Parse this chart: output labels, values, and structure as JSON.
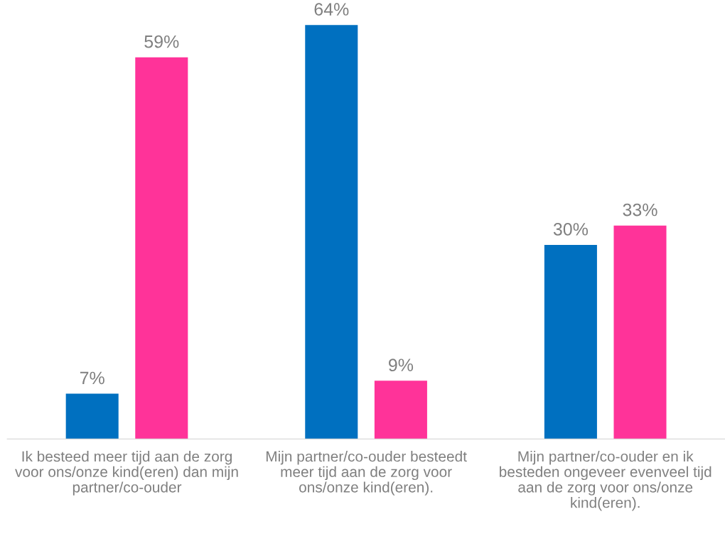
{
  "chart_data": {
    "type": "bar",
    "categories": [
      "Ik besteed meer tijd aan de zorg voor ons/onze kind(eren) dan mijn partner/co-ouder",
      "Mijn partner/co-ouder besteedt meer tijd aan de zorg voor ons/onze kind(eren).",
      "Mijn partner/co-ouder en ik besteden ongeveer evenveel tijd aan de zorg voor ons/onze kind(eren)."
    ],
    "series": [
      {
        "color": "#0070c0",
        "values": [
          7,
          64,
          30
        ],
        "value_labels": [
          "7%",
          "64%",
          "30%"
        ]
      },
      {
        "color": "#ff3399",
        "values": [
          59,
          9,
          33
        ],
        "value_labels": [
          "59%",
          "9%",
          "33%"
        ]
      }
    ],
    "grid": false,
    "legend": false
  }
}
